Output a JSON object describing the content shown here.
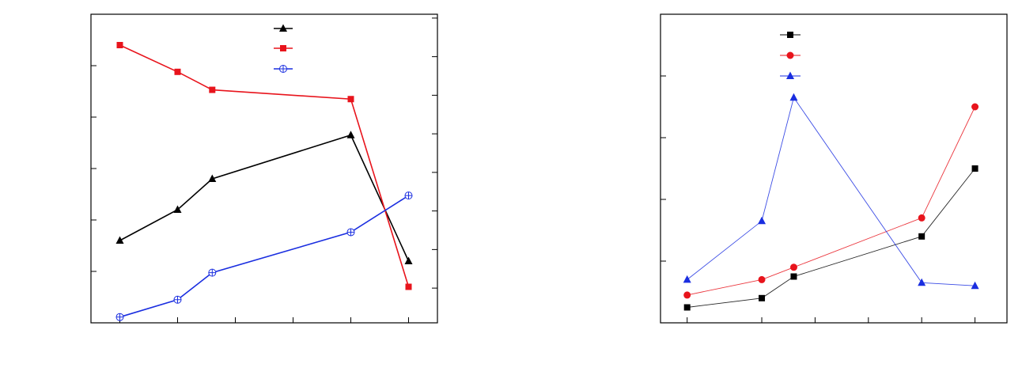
{
  "chart_data": [
    {
      "type": "line",
      "title": "",
      "xlabel": "",
      "ylabel_left": "",
      "ylabel_right": "",
      "x": [
        1,
        2,
        2.6,
        5,
        6
      ],
      "xlim": [
        0.5,
        6.5
      ],
      "ylim_left": [
        0,
        6
      ],
      "ylim_right": [
        0,
        8
      ],
      "grid": false,
      "legend": "top-center",
      "series": [
        {
          "axis": "left",
          "marker": "triangle",
          "color": "#000000",
          "values": [
            1.6,
            2.2,
            2.8,
            3.65,
            1.2
          ]
        },
        {
          "axis": "left",
          "marker": "square",
          "color": "#e8141c",
          "values": [
            5.4,
            4.88,
            4.53,
            4.35,
            0.7
          ]
        },
        {
          "axis": "right",
          "marker": "circle-cross",
          "color": "#1a2ee0",
          "values": [
            0.15,
            0.6,
            1.3,
            2.35,
            3.3
          ]
        }
      ]
    },
    {
      "type": "line",
      "title": "",
      "xlabel": "",
      "ylabel": "",
      "x": [
        1,
        2.4,
        3,
        5.4,
        6.4
      ],
      "xlim": [
        0.5,
        7
      ],
      "ylim": [
        0,
        5
      ],
      "grid": false,
      "legend": "top-center",
      "series": [
        {
          "marker": "square",
          "color": "#000000",
          "values": [
            0.25,
            0.4,
            0.75,
            1.4,
            2.5
          ]
        },
        {
          "marker": "circle",
          "color": "#e8141c",
          "values": [
            0.45,
            0.7,
            0.9,
            1.7,
            3.5
          ]
        },
        {
          "marker": "triangle",
          "color": "#1a2ee0",
          "values": [
            0.7,
            1.65,
            3.65,
            0.65,
            0.6
          ]
        }
      ]
    }
  ]
}
